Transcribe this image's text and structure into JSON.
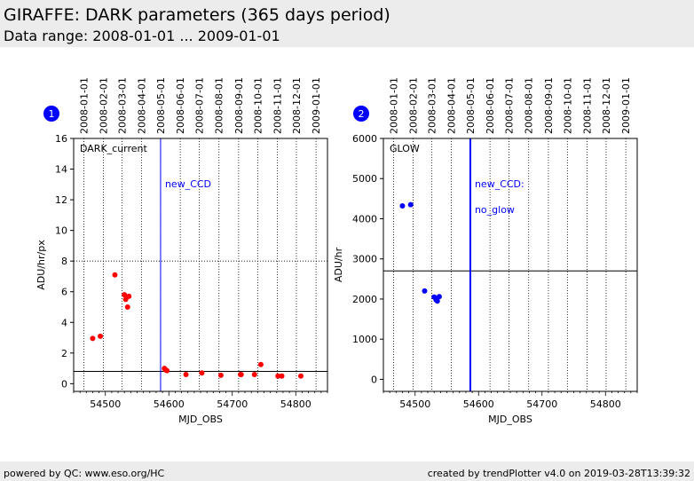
{
  "header": {
    "title": "GIRAFFE: DARK parameters (365 days period)",
    "subtitle": "Data range: 2008-01-01 ... 2009-01-01"
  },
  "footer": {
    "left": "powered by QC: www.eso.org/HC",
    "right": "created by trendPlotter v4.0 on 2019-03-28T13:39:32"
  },
  "colors": {
    "dark_points": "#ff0000",
    "glow_points": "#0000ff",
    "event_line": "#0000ff",
    "header_bg": "#ececec"
  },
  "chart_data": [
    {
      "type": "scatter",
      "panel_number": "1",
      "title": "DARK_current",
      "xlabel": "MJD_OBS",
      "ylabel": "ADU/hr/px",
      "xlim": [
        54450,
        54850
      ],
      "ylim": [
        -0.5,
        16
      ],
      "xticks": [
        54500,
        54600,
        54700,
        54800
      ],
      "yticks": [
        0,
        2,
        4,
        6,
        8,
        10,
        12,
        14,
        16
      ],
      "top_date_ticks": [
        {
          "label": "2008-01-01",
          "mjd": 54466
        },
        {
          "label": "2008-02-01",
          "mjd": 54497
        },
        {
          "label": "2008-03-01",
          "mjd": 54526
        },
        {
          "label": "2008-04-01",
          "mjd": 54557
        },
        {
          "label": "2008-05-01",
          "mjd": 54587
        },
        {
          "label": "2008-06-01",
          "mjd": 54618
        },
        {
          "label": "2008-07-01",
          "mjd": 54648
        },
        {
          "label": "2008-08-01",
          "mjd": 54679
        },
        {
          "label": "2008-09-01",
          "mjd": 54710
        },
        {
          "label": "2008-10-01",
          "mjd": 54740
        },
        {
          "label": "2008-11-01",
          "mjd": 54771
        },
        {
          "label": "2008-12-01",
          "mjd": 54801
        },
        {
          "label": "2009-01-01",
          "mjd": 54832
        }
      ],
      "reference_lines": [
        {
          "y": 0.8,
          "style": "solid"
        },
        {
          "y": 8,
          "style": "dotted"
        }
      ],
      "event_lines": [
        {
          "x": 54587,
          "labels": [
            "new_CCD"
          ]
        }
      ],
      "x": [
        54480,
        54492,
        54515,
        54530,
        54532,
        54535,
        54537,
        54593,
        54595,
        54597,
        54627,
        54652,
        54682,
        54713,
        54714,
        54735,
        54745,
        54772,
        54778,
        54808
      ],
      "y": [
        2.95,
        3.1,
        7.1,
        5.8,
        5.5,
        5.0,
        5.7,
        1.0,
        0.9,
        0.85,
        0.6,
        0.7,
        0.55,
        0.6,
        0.6,
        0.6,
        1.25,
        0.5,
        0.5,
        0.5
      ],
      "grid": true
    },
    {
      "type": "scatter",
      "panel_number": "2",
      "title": "GLOW",
      "xlabel": "MJD_OBS",
      "ylabel": "ADU/hr",
      "xlim": [
        54450,
        54850
      ],
      "ylim": [
        -300,
        6000
      ],
      "xticks": [
        54500,
        54600,
        54700,
        54800
      ],
      "yticks": [
        0,
        1000,
        2000,
        3000,
        4000,
        5000,
        6000
      ],
      "top_date_ticks": [
        {
          "label": "2008-01-01",
          "mjd": 54466
        },
        {
          "label": "2008-02-01",
          "mjd": 54497
        },
        {
          "label": "2008-03-01",
          "mjd": 54526
        },
        {
          "label": "2008-04-01",
          "mjd": 54557
        },
        {
          "label": "2008-05-01",
          "mjd": 54587
        },
        {
          "label": "2008-06-01",
          "mjd": 54618
        },
        {
          "label": "2008-07-01",
          "mjd": 54648
        },
        {
          "label": "2008-08-01",
          "mjd": 54679
        },
        {
          "label": "2008-09-01",
          "mjd": 54710
        },
        {
          "label": "2008-10-01",
          "mjd": 54740
        },
        {
          "label": "2008-11-01",
          "mjd": 54771
        },
        {
          "label": "2008-12-01",
          "mjd": 54801
        },
        {
          "label": "2009-01-01",
          "mjd": 54832
        }
      ],
      "reference_lines": [
        {
          "y": 2700,
          "style": "solid"
        }
      ],
      "event_lines": [
        {
          "x": 54587,
          "labels": [
            "new_CCD:",
            "no_glow"
          ]
        }
      ],
      "x": [
        54480,
        54493,
        54515,
        54530,
        54533,
        54535,
        54538
      ],
      "y": [
        4320,
        4350,
        2200,
        2050,
        1980,
        1950,
        2060
      ],
      "grid": true
    }
  ]
}
